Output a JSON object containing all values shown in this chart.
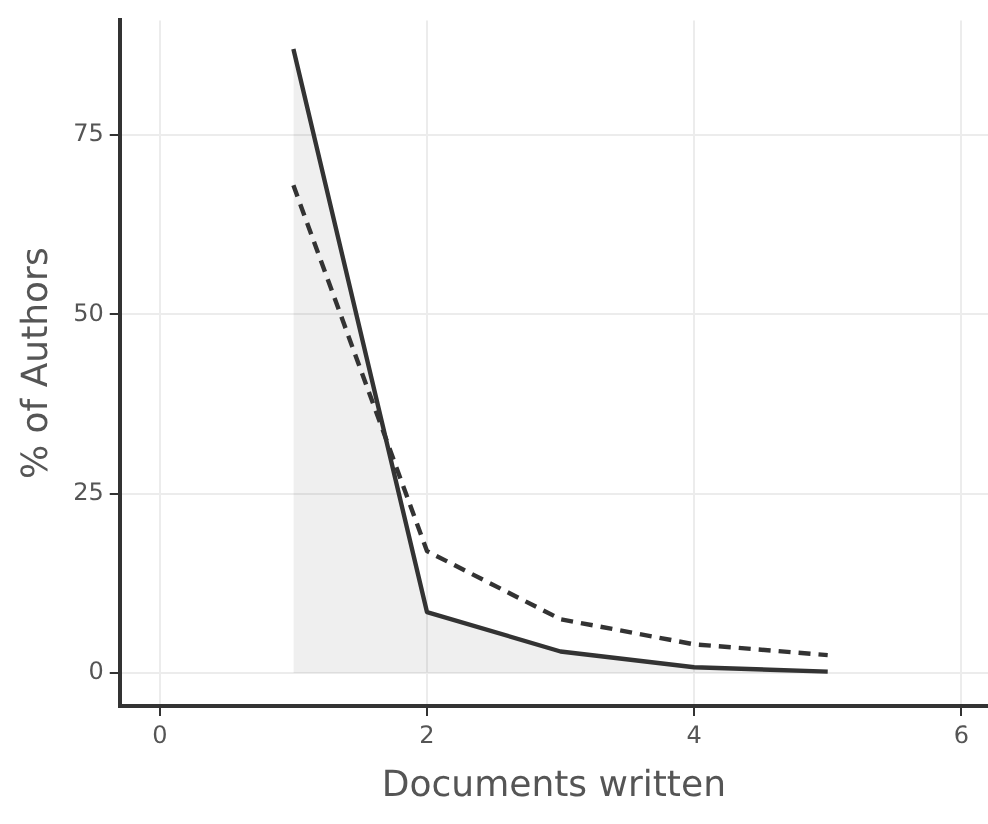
{
  "chart_data": {
    "type": "line",
    "xlabel": "Documents written",
    "ylabel": "% of Authors",
    "x": [
      1,
      2,
      3,
      4,
      5
    ],
    "series": [
      {
        "type": "area",
        "color": "#333333",
        "values": [
          87,
          8.5,
          3,
          0.8,
          0.2
        ],
        "line_style": "solid"
      },
      {
        "type": "line",
        "color": "#333333",
        "values": [
          68,
          17,
          7.5,
          4,
          2.5
        ],
        "line_style": "dashed"
      }
    ],
    "xlim": [
      -0.3,
      6.2
    ],
    "xticks": [
      0,
      2,
      4,
      6
    ],
    "ylim": [
      -4.6,
      91
    ],
    "yticks": [
      0,
      25,
      50,
      75
    ],
    "grid": true,
    "legend": false,
    "marker": "none"
  }
}
